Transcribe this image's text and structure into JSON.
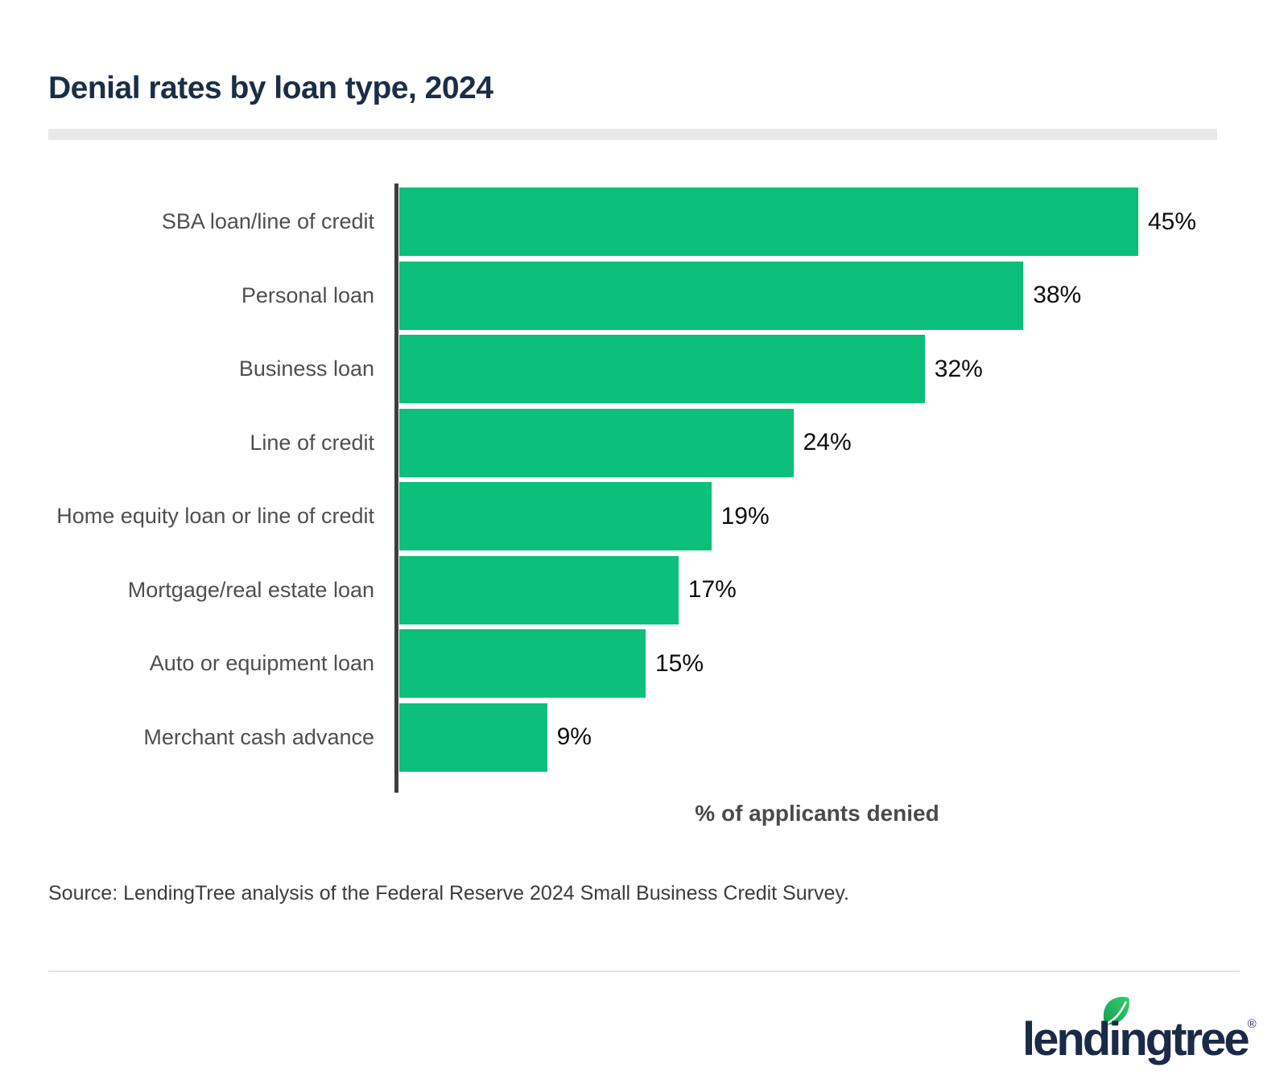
{
  "title": "Denial rates by loan type, 2024",
  "chart_data": {
    "type": "bar",
    "orientation": "horizontal",
    "title": "Denial rates by loan type, 2024",
    "categories": [
      "SBA loan/line of credit",
      "Personal loan",
      "Business loan",
      "Line of credit",
      "Home equity loan or line of credit",
      "Mortgage/real estate loan",
      "Auto or equipment loan",
      "Merchant cash advance"
    ],
    "values": [
      45,
      38,
      32,
      24,
      19,
      17,
      15,
      9
    ],
    "value_labels": [
      "45%",
      "38%",
      "32%",
      "24%",
      "19%",
      "17%",
      "15%",
      "9%"
    ],
    "xlabel": "% of applicants denied",
    "ylabel": "",
    "xlim": [
      0,
      51
    ],
    "grid": false,
    "legend_position": "none",
    "bar_color": "#0cbf7a"
  },
  "source_note": "Source: LendingTree analysis of the Federal Reserve 2024 Small Business Credit Survey.",
  "footer": {
    "logo_text": "lendingtree",
    "trademark": "®",
    "logo_mark": "leaf-icon"
  },
  "colors": {
    "bar_green": "#0cbf7a",
    "title_navy": "#1c2e45",
    "label_gray": "#4f4f4f",
    "value_black": "#0d0d0d",
    "axis_line": "#3d3d3d",
    "divider_gray": "#e9e9e9",
    "logo_navy": "#1b2a47",
    "leaf_green_light": "#34d06a",
    "leaf_green_dark": "#149e53"
  }
}
